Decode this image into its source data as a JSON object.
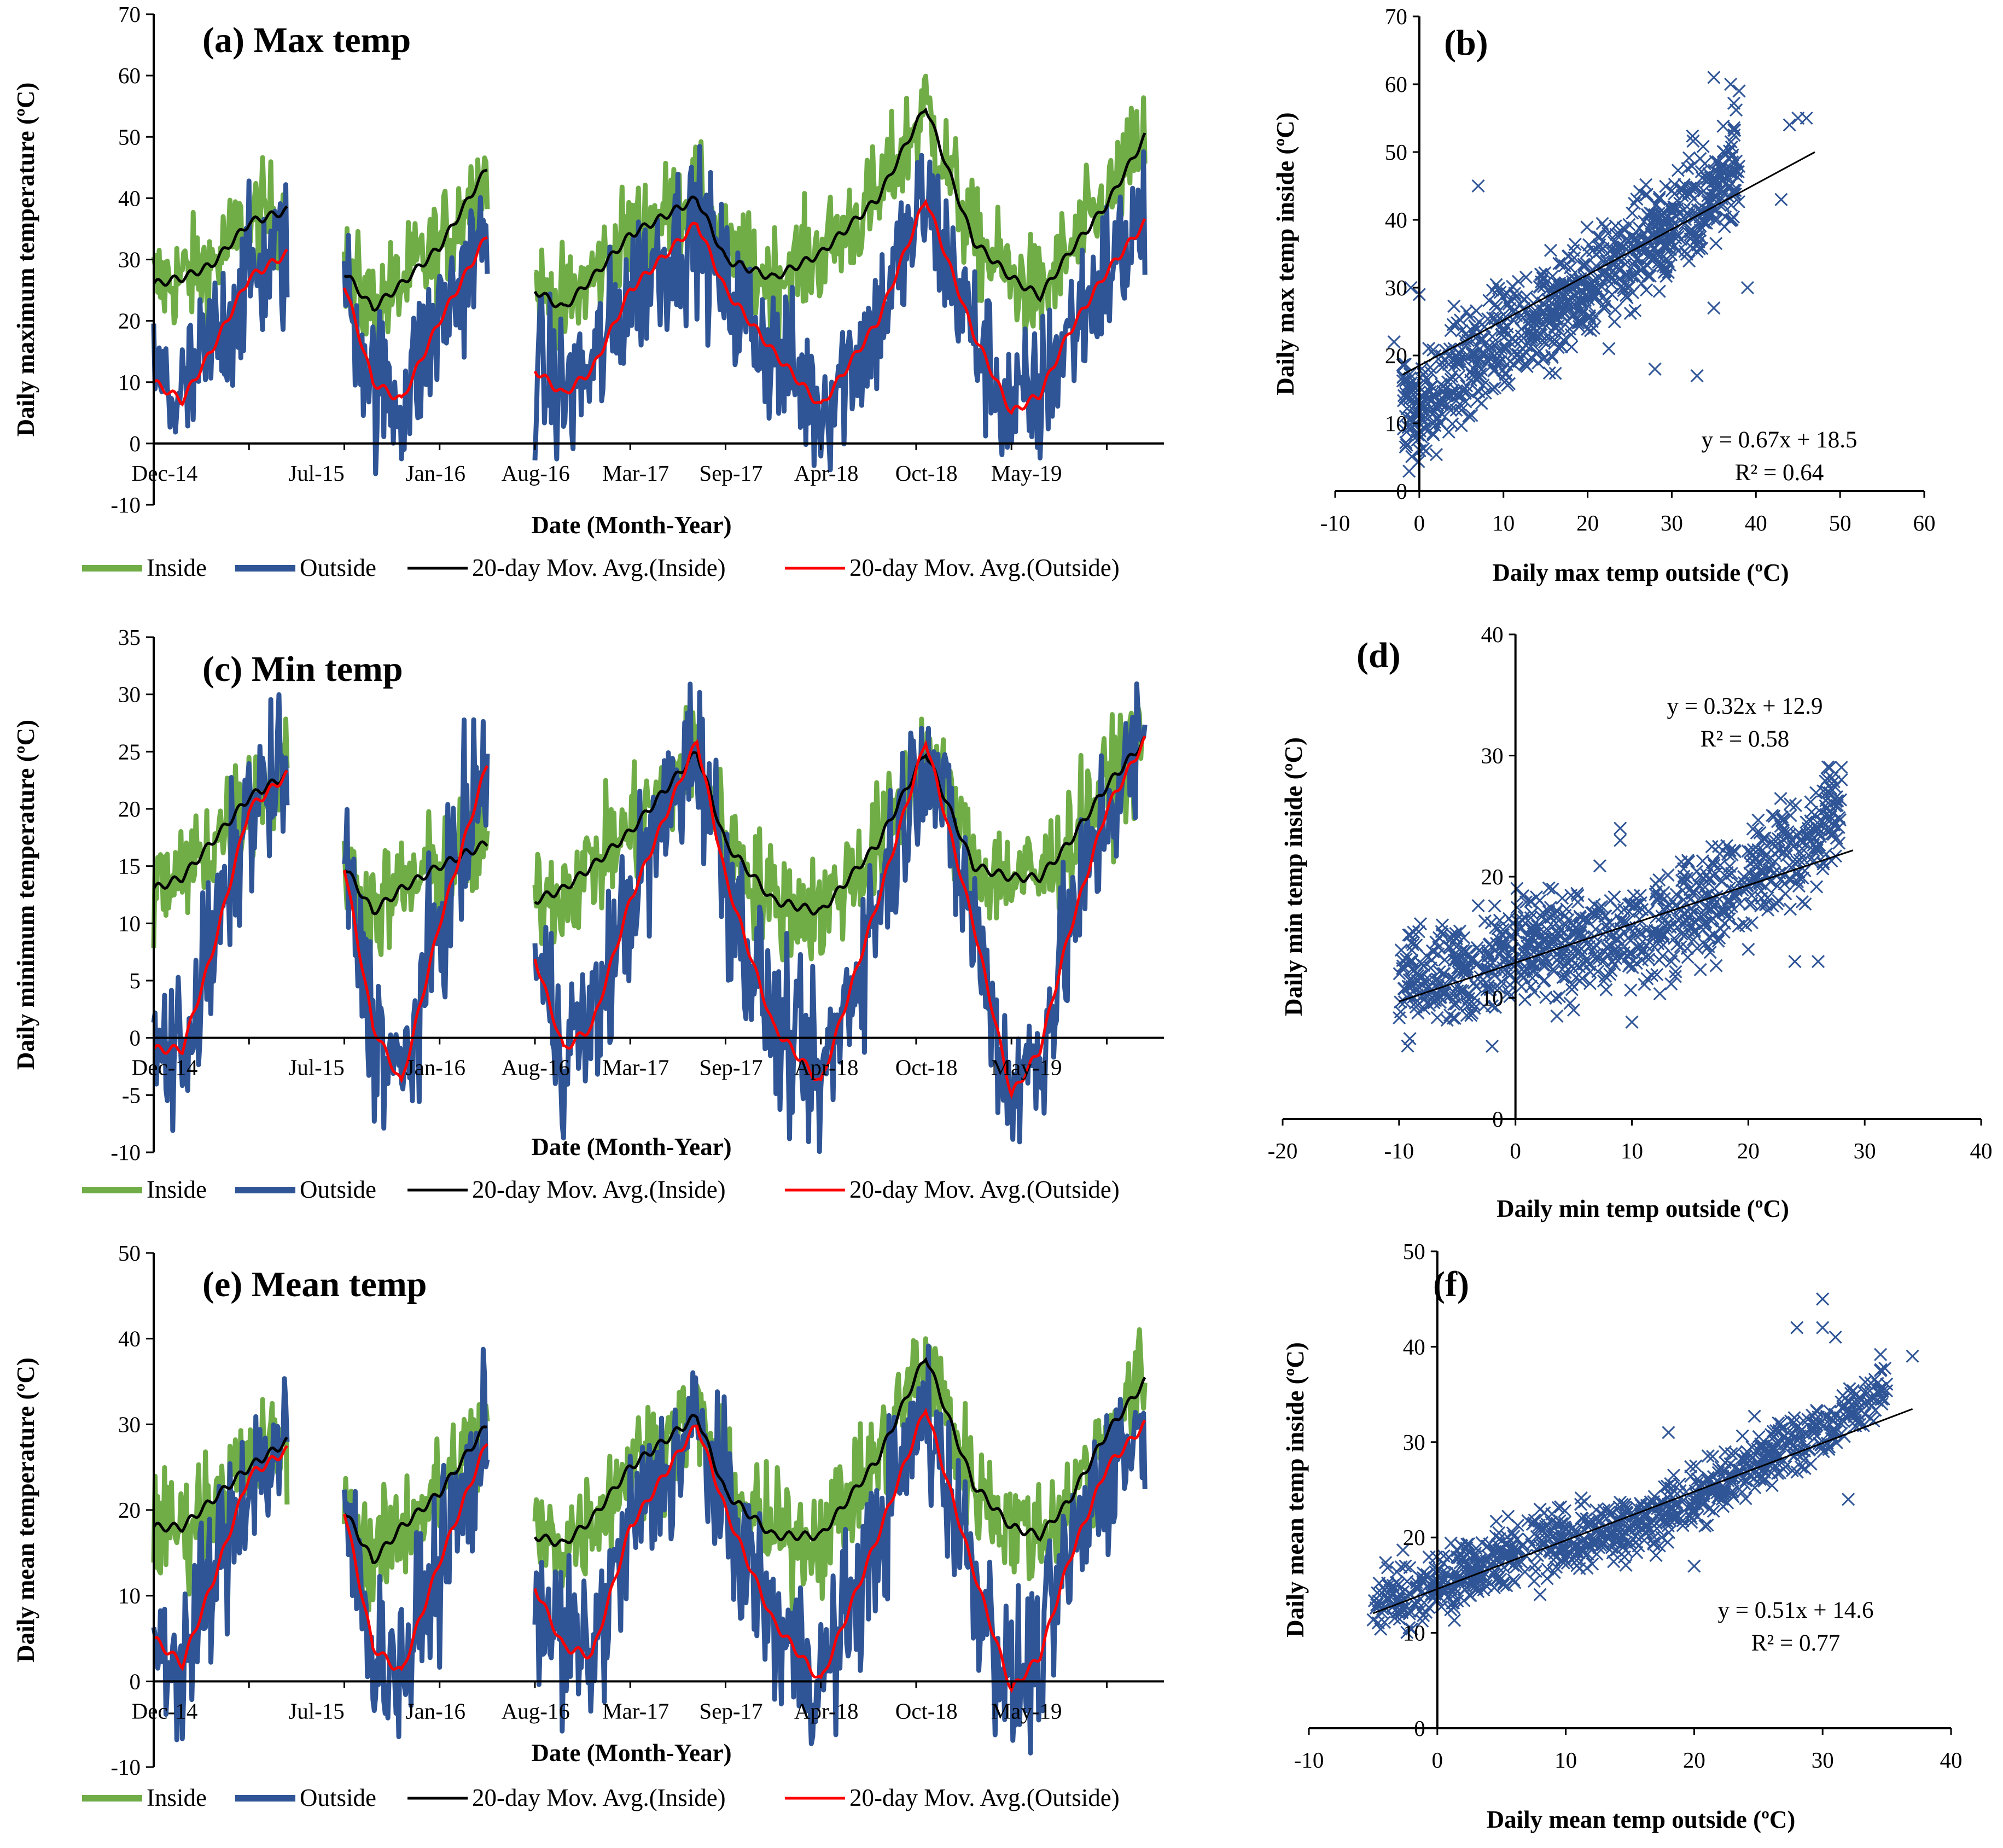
{
  "chart_data": [
    {
      "id": "a",
      "type": "line",
      "title": "(a) Max temp",
      "xlabel": "Date (Month-Year)",
      "ylabel": "Daily maximum temperature (ºC)",
      "ylim": [
        -10,
        70
      ],
      "yticks": [
        -10,
        0,
        10,
        20,
        30,
        40,
        50,
        60,
        70
      ],
      "categories": [
        "Dec-14",
        "Jul-15",
        "Jan-16",
        "Aug-16",
        "Mar-17",
        "Sep-17",
        "Apr-18",
        "Oct-18",
        "May-19"
      ],
      "legend": [
        "Inside",
        "Outside",
        "20-day Mov. Avg.(Inside)",
        "20-day Mov. Avg.(Outside)"
      ],
      "series": [
        {
          "name": "20-day Mov. Avg.(Inside)",
          "segments": [
            [
              [
                0,
                26
              ],
              [
                0.3,
                27
              ],
              [
                0.6,
                29
              ],
              [
                1.0,
                36
              ],
              [
                1.4,
                38
              ]
            ],
            [
              [
                2.0,
                28
              ],
              [
                2.3,
                22
              ],
              [
                2.6,
                26
              ],
              [
                3.0,
                32
              ],
              [
                3.5,
                45
              ]
            ],
            [
              [
                4.0,
                25
              ],
              [
                4.3,
                22
              ],
              [
                4.6,
                27
              ],
              [
                5.0,
                34
              ],
              [
                5.7,
                40
              ],
              [
                6.0,
                30
              ],
              [
                6.5,
                27
              ],
              [
                7.0,
                31
              ],
              [
                7.6,
                40
              ],
              [
                8.1,
                55
              ],
              [
                8.6,
                33
              ],
              [
                9.0,
                27
              ],
              [
                9.3,
                24
              ],
              [
                9.6,
                31
              ],
              [
                10.0,
                39
              ],
              [
                10.4,
                50
              ]
            ]
          ]
        },
        {
          "name": "20-day Mov. Avg.(Outside)",
          "segments": [
            [
              [
                0,
                10
              ],
              [
                0.3,
                7
              ],
              [
                0.6,
                15
              ],
              [
                1.0,
                27
              ],
              [
                1.4,
                31
              ]
            ],
            [
              [
                2.0,
                26
              ],
              [
                2.3,
                10
              ],
              [
                2.6,
                7
              ],
              [
                3.0,
                20
              ],
              [
                3.5,
                34
              ]
            ],
            [
              [
                4.0,
                12
              ],
              [
                4.3,
                8
              ],
              [
                4.6,
                12
              ],
              [
                5.0,
                25
              ],
              [
                5.7,
                36
              ],
              [
                6.0,
                25
              ],
              [
                6.5,
                15
              ],
              [
                7.0,
                6
              ],
              [
                7.6,
                20
              ],
              [
                8.1,
                40
              ],
              [
                8.6,
                18
              ],
              [
                9.0,
                5
              ],
              [
                9.3,
                8
              ],
              [
                9.6,
                18
              ],
              [
                10.0,
                28
              ],
              [
                10.4,
                36
              ]
            ]
          ]
        }
      ]
    },
    {
      "id": "b",
      "type": "scatter",
      "title": "(b)",
      "xlabel": "Daily max temp outside (ºC)",
      "ylabel": "Daily max temp inside (ºC)",
      "xlim": [
        -10,
        60
      ],
      "ylim": [
        0,
        70
      ],
      "xticks": [
        -10,
        0,
        10,
        20,
        30,
        40,
        50,
        60
      ],
      "yticks": [
        0,
        10,
        20,
        30,
        40,
        50,
        60,
        70
      ],
      "trendline": {
        "slope": 0.67,
        "intercept": 18.5,
        "x_range": [
          -2,
          47
        ]
      },
      "equation": "y = 0.67x + 18.5",
      "r2": "R² = 0.64",
      "cloud": [
        [
          -2,
          14
        ],
        [
          0,
          12
        ],
        [
          5,
          18
        ],
        [
          10,
          22
        ],
        [
          15,
          26
        ],
        [
          20,
          30
        ],
        [
          25,
          35
        ],
        [
          30,
          40
        ],
        [
          35,
          44
        ],
        [
          38,
          48
        ]
      ],
      "spread": 7,
      "outliers": [
        [
          7,
          45
        ],
        [
          35,
          61
        ],
        [
          37,
          60
        ],
        [
          38,
          59
        ],
        [
          44,
          54
        ],
        [
          45,
          55
        ],
        [
          46,
          55
        ],
        [
          43,
          43
        ],
        [
          39,
          30
        ],
        [
          35,
          27
        ],
        [
          28,
          18
        ],
        [
          33,
          17
        ],
        [
          -1,
          30
        ],
        [
          0,
          29
        ],
        [
          -3,
          22
        ]
      ]
    },
    {
      "id": "c",
      "type": "line",
      "title": "(c) Min temp",
      "xlabel": "Date (Month-Year)",
      "ylabel": "Daily minimum temperature (ºC)",
      "ylim": [
        -10,
        35
      ],
      "yticks": [
        -10,
        -5,
        0,
        5,
        10,
        15,
        20,
        25,
        30,
        35
      ],
      "categories": [
        "Dec-14",
        "Jul-15",
        "Jan-16",
        "Aug-16",
        "Mar-17",
        "Sep-17",
        "Apr-18",
        "Oct-18",
        "May-19"
      ],
      "legend": [
        "Inside",
        "Outside",
        "20-day Mov. Avg.(Inside)",
        "20-day Mov. Avg.(Outside)"
      ],
      "series": [
        {
          "name": "20-day Mov. Avg.(Inside)",
          "segments": [
            [
              [
                0,
                13
              ],
              [
                0.3,
                14
              ],
              [
                0.6,
                17
              ],
              [
                1.0,
                21
              ],
              [
                1.4,
                23
              ]
            ],
            [
              [
                2.0,
                15
              ],
              [
                2.3,
                11
              ],
              [
                2.6,
                13
              ],
              [
                3.0,
                15
              ],
              [
                3.5,
                17
              ]
            ],
            [
              [
                4.0,
                12
              ],
              [
                4.3,
                13
              ],
              [
                4.6,
                15
              ],
              [
                5.0,
                18
              ],
              [
                5.7,
                25
              ],
              [
                6.0,
                17
              ],
              [
                6.5,
                12
              ],
              [
                7.0,
                11
              ],
              [
                7.6,
                17
              ],
              [
                8.1,
                25
              ],
              [
                8.6,
                15
              ],
              [
                9.0,
                14
              ],
              [
                9.3,
                14
              ],
              [
                9.6,
                17
              ],
              [
                10.0,
                22
              ],
              [
                10.4,
                26
              ]
            ]
          ]
        },
        {
          "name": "20-day Mov. Avg.(Outside)",
          "segments": [
            [
              [
                0,
                -1
              ],
              [
                0.3,
                -1
              ],
              [
                0.6,
                7
              ],
              [
                1.0,
                20
              ],
              [
                1.4,
                23
              ]
            ],
            [
              [
                2.0,
                15
              ],
              [
                2.3,
                1
              ],
              [
                2.6,
                -4
              ],
              [
                3.0,
                10
              ],
              [
                3.5,
                24
              ]
            ],
            [
              [
                4.0,
                7
              ],
              [
                4.3,
                -1
              ],
              [
                4.6,
                1
              ],
              [
                5.0,
                12
              ],
              [
                5.7,
                26
              ],
              [
                6.0,
                14
              ],
              [
                6.5,
                1
              ],
              [
                7.0,
                -4
              ],
              [
                7.6,
                12
              ],
              [
                8.1,
                26
              ],
              [
                8.6,
                10
              ],
              [
                9.0,
                -5
              ],
              [
                9.3,
                -1
              ],
              [
                9.6,
                9
              ],
              [
                10.0,
                20
              ],
              [
                10.4,
                26
              ]
            ]
          ]
        }
      ]
    },
    {
      "id": "d",
      "type": "scatter",
      "title": "(d)",
      "xlabel": "Daily min temp outside (ºC)",
      "ylabel": "Daily min temp inside (ºC)",
      "xlim": [
        -20,
        40
      ],
      "ylim": [
        0,
        40
      ],
      "xticks": [
        -20,
        -10,
        0,
        10,
        20,
        30,
        40
      ],
      "yticks": [
        0,
        10,
        20,
        30,
        40
      ],
      "trendline": {
        "slope": 0.32,
        "intercept": 12.9,
        "x_range": [
          -10,
          29
        ]
      },
      "equation": "y = 0.32x + 12.9",
      "r2": "R² = 0.58",
      "cloud": [
        [
          -10,
          11
        ],
        [
          -5,
          12
        ],
        [
          0,
          14
        ],
        [
          5,
          15
        ],
        [
          10,
          15
        ],
        [
          15,
          17
        ],
        [
          20,
          20
        ],
        [
          25,
          23
        ],
        [
          28,
          26
        ]
      ],
      "spread": 4,
      "outliers": [
        [
          -2,
          6
        ],
        [
          9,
          24
        ],
        [
          9,
          23
        ],
        [
          27,
          29
        ],
        [
          28,
          28
        ],
        [
          26,
          13
        ],
        [
          24,
          13
        ],
        [
          20,
          14
        ],
        [
          10,
          8
        ],
        [
          5,
          9
        ]
      ]
    },
    {
      "id": "e",
      "type": "line",
      "title": "(e) Mean temp",
      "xlabel": "Date (Month-Year)",
      "ylabel": "Daily mean temperature (ºC)",
      "ylim": [
        -10,
        50
      ],
      "yticks": [
        -10,
        0,
        10,
        20,
        30,
        40,
        50
      ],
      "categories": [
        "Dec-14",
        "Jul-15",
        "Jan-16",
        "Aug-16",
        "Mar-17",
        "Sep-17",
        "Apr-18",
        "Oct-18",
        "May-19"
      ],
      "legend": [
        "Inside",
        "Outside",
        "20-day Mov. Avg.(Inside)",
        "20-day Mov. Avg.(Outside)"
      ],
      "series": [
        {
          "name": "20-day Mov. Avg.(Inside)",
          "segments": [
            [
              [
                0,
                18
              ],
              [
                0.3,
                18
              ],
              [
                0.6,
                21
              ],
              [
                1.0,
                25
              ],
              [
                1.4,
                28
              ]
            ],
            [
              [
                2.0,
                20
              ],
              [
                2.3,
                14
              ],
              [
                2.6,
                18
              ],
              [
                3.0,
                22
              ],
              [
                3.5,
                30
              ]
            ],
            [
              [
                4.0,
                17
              ],
              [
                4.3,
                16
              ],
              [
                4.6,
                19
              ],
              [
                5.0,
                25
              ],
              [
                5.7,
                31
              ],
              [
                6.0,
                22
              ],
              [
                6.5,
                17
              ],
              [
                7.0,
                17
              ],
              [
                7.6,
                26
              ],
              [
                8.1,
                38
              ],
              [
                8.6,
                23
              ],
              [
                9.0,
                18
              ],
              [
                9.3,
                17
              ],
              [
                9.6,
                21
              ],
              [
                10.0,
                29
              ],
              [
                10.4,
                35
              ]
            ]
          ]
        },
        {
          "name": "20-day Mov. Avg.(Outside)",
          "segments": [
            [
              [
                0,
                5
              ],
              [
                0.3,
                2
              ],
              [
                0.6,
                11
              ],
              [
                1.0,
                24
              ],
              [
                1.4,
                27
              ]
            ],
            [
              [
                2.0,
                20
              ],
              [
                2.3,
                4
              ],
              [
                2.6,
                1
              ],
              [
                3.0,
                14
              ],
              [
                3.5,
                28
              ]
            ],
            [
              [
                4.0,
                11
              ],
              [
                4.3,
                4
              ],
              [
                4.6,
                3
              ],
              [
                5.0,
                18
              ],
              [
                5.7,
                30
              ],
              [
                6.0,
                20
              ],
              [
                6.5,
                7
              ],
              [
                7.0,
                0
              ],
              [
                7.6,
                17
              ],
              [
                8.1,
                32
              ],
              [
                8.6,
                13
              ],
              [
                9.0,
                -1
              ],
              [
                9.3,
                3
              ],
              [
                9.6,
                14
              ],
              [
                10.0,
                25
              ],
              [
                10.4,
                30
              ]
            ]
          ]
        }
      ]
    },
    {
      "id": "f",
      "type": "scatter",
      "title": "(f)",
      "xlabel": "Daily mean temp outside (ºC)",
      "ylabel": "Daily mean temp inside (ºC)",
      "xlim": [
        -10,
        40
      ],
      "ylim": [
        0,
        50
      ],
      "xticks": [
        -10,
        0,
        10,
        20,
        30,
        40
      ],
      "yticks": [
        0,
        10,
        20,
        30,
        40,
        50
      ],
      "trendline": {
        "slope": 0.51,
        "intercept": 14.6,
        "x_range": [
          -5,
          37
        ]
      },
      "equation": "y = 0.51x + 14.6",
      "r2": "R² = 0.77",
      "cloud": [
        [
          -5,
          13
        ],
        [
          0,
          15
        ],
        [
          5,
          18
        ],
        [
          10,
          20
        ],
        [
          15,
          21
        ],
        [
          20,
          24
        ],
        [
          25,
          28
        ],
        [
          30,
          31
        ],
        [
          35,
          36
        ]
      ],
      "spread": 3,
      "outliers": [
        [
          28,
          42
        ],
        [
          30,
          42
        ],
        [
          31,
          41
        ],
        [
          30,
          45
        ],
        [
          37,
          39
        ],
        [
          18,
          31
        ],
        [
          32,
          24
        ],
        [
          20,
          17
        ],
        [
          8,
          14
        ]
      ]
    }
  ]
}
